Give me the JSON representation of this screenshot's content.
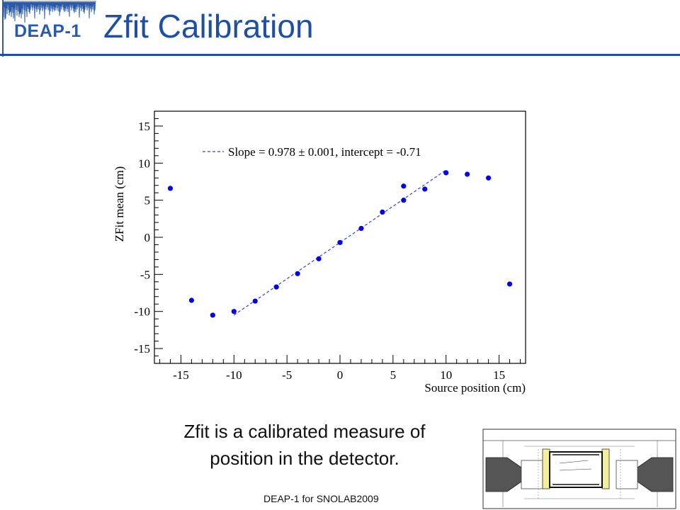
{
  "header": {
    "logo_text": "DEAP-1",
    "title": "Zfit Calibration"
  },
  "chart_data": {
    "type": "scatter",
    "xlabel": "Source position (cm)",
    "ylabel": "ZFit mean (cm)",
    "xlim": [
      -17.5,
      17.5
    ],
    "ylim": [
      -17,
      17
    ],
    "xticks": [
      -15,
      -10,
      -5,
      0,
      5,
      10,
      15
    ],
    "yticks": [
      -15,
      -10,
      -5,
      0,
      5,
      10,
      15
    ],
    "grid": false,
    "series": [
      {
        "name": "data",
        "color": "#0000ee",
        "x": [
          -16,
          -14,
          -12,
          -10,
          -8,
          -6,
          -4,
          -2,
          0,
          2,
          4,
          6,
          6,
          8,
          10,
          12,
          14,
          16
        ],
        "y": [
          6.6,
          -8.5,
          -10.5,
          -10.0,
          -8.6,
          -6.7,
          -4.9,
          -2.9,
          -0.7,
          1.2,
          3.4,
          6.9,
          5.0,
          6.5,
          8.7,
          8.5,
          8.0,
          -6.3
        ]
      }
    ],
    "fit": {
      "legend": "Slope = 0.978 ± 0.001, intercept = -0.71",
      "slope": 0.978,
      "intercept": -0.71,
      "x_range": [
        -10,
        10
      ],
      "color": "#3344cc",
      "legend_position": "top-left"
    }
  },
  "caption": {
    "line1": "Zfit is a calibrated measure of",
    "line2": "position in the detector."
  },
  "footer": {
    "text": "DEAP-1 for SNOLAB2009"
  }
}
